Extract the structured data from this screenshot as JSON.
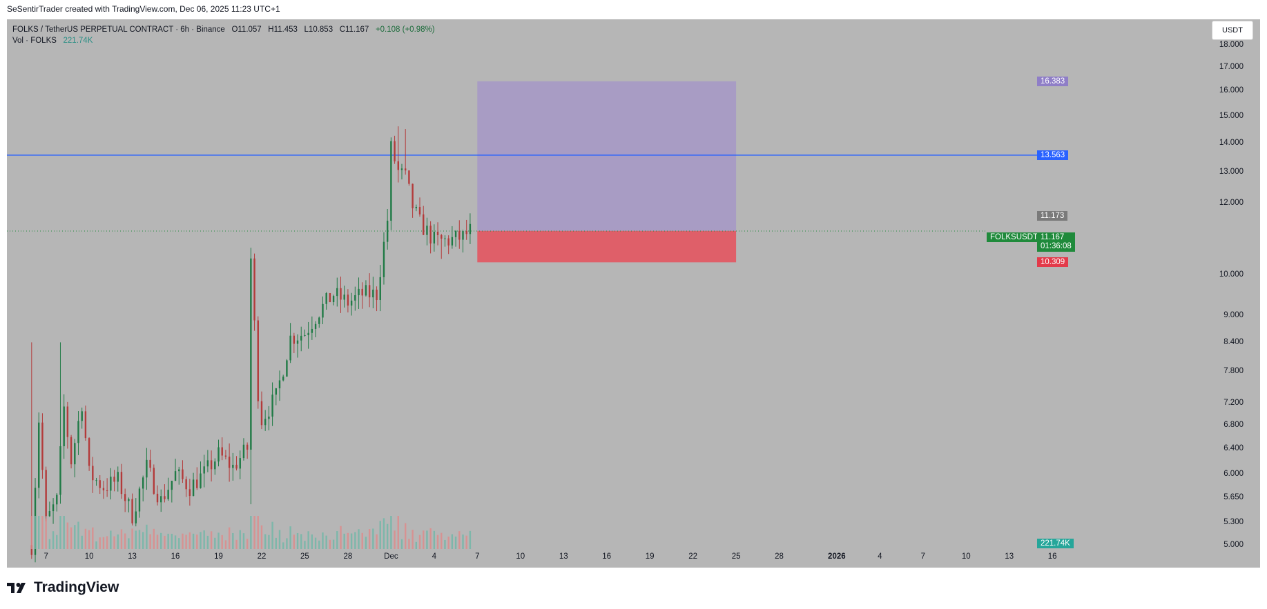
{
  "header": {
    "credit": "SeSentirTrader created with TradingView.com, Dec 06, 2025 11:23 UTC+1"
  },
  "legend": {
    "symbol": "FOLKS / TetherUS PERPETUAL CONTRACT · 6h · Binance",
    "open": "O11.057",
    "high": "H11.453",
    "low": "L10.853",
    "close": "C11.167",
    "change": "+0.108 (+0.98%)",
    "vol_label": "Vol · FOLKS",
    "vol_value": "221.74K"
  },
  "currency_button": "USDT",
  "price_axis": [
    "18.000",
    "17.000",
    "16.000",
    "15.000",
    "14.000",
    "13.000",
    "12.000",
    "10.000",
    "9.000",
    "8.400",
    "7.800",
    "7.200",
    "6.800",
    "6.400",
    "6.000",
    "5.650",
    "5.300",
    "5.000"
  ],
  "time_axis": [
    "7",
    "10",
    "13",
    "16",
    "19",
    "22",
    "25",
    "28",
    "Dec",
    "4",
    "7",
    "10",
    "13",
    "16",
    "19",
    "22",
    "25",
    "28",
    "2026",
    "4",
    "7",
    "10",
    "13",
    "16"
  ],
  "price_tags": {
    "target": "16.383",
    "line": "13.563",
    "last": "11.173",
    "symbol": "FOLKSUSDT.P",
    "current": "11.167",
    "countdown": "01:36:08",
    "stop": "10.309",
    "volume": "221.74K"
  },
  "colors": {
    "up": "#1f7a45",
    "down": "#b33a3a",
    "line": "#2962ff",
    "target_zone": "#a89cc4",
    "stop_zone": "#df5f69",
    "target_tag": "#8f7ec7",
    "stop_tag": "#e33a4a",
    "current_tag": "#1f8a3b",
    "volume_tag": "#26a69a",
    "last_tag": "#7a7a7a"
  },
  "brand": {
    "name": "TradingView",
    "icon": "tradingview-logo-icon"
  },
  "chart_data": {
    "type": "candlestick",
    "symbol": "FOLKSUSDT.P",
    "timeframe": "6h",
    "scale": "log",
    "ylim": [
      4.95,
      19.2
    ],
    "xlim": [
      "2025-11-05",
      "2026-01-17"
    ],
    "horizontal_line": 13.563,
    "position": {
      "entry": 11.173,
      "target": 16.383,
      "stop": 10.309,
      "from": "2025-12-07",
      "to": "2025-12-25"
    },
    "path": [
      [
        "2025-11-06",
        5.0
      ],
      [
        "2025-11-06T12:00",
        6.9
      ],
      [
        "2025-11-07",
        5.3
      ],
      [
        "2025-11-07T18:00",
        5.6
      ],
      [
        "2025-11-08T06:00",
        7.1
      ],
      [
        "2025-11-08T18:00",
        6.2
      ],
      [
        "2025-11-09T12:00",
        7.2
      ],
      [
        "2025-11-10",
        6.0
      ],
      [
        "2025-11-11",
        5.8
      ],
      [
        "2025-11-12",
        5.9
      ],
      [
        "2025-11-13",
        5.4
      ],
      [
        "2025-11-14",
        6.1
      ],
      [
        "2025-11-15",
        5.6
      ],
      [
        "2025-11-16",
        6.0
      ],
      [
        "2025-11-17",
        5.8
      ],
      [
        "2025-11-18",
        6.0
      ],
      [
        "2025-11-19",
        6.3
      ],
      [
        "2025-11-20",
        6.1
      ],
      [
        "2025-11-21",
        6.4
      ],
      [
        "2025-11-21T06:00",
        10.4
      ],
      [
        "2025-11-21T18:00",
        7.4
      ],
      [
        "2025-11-22",
        6.9
      ],
      [
        "2025-11-23",
        7.3
      ],
      [
        "2025-11-24",
        8.5
      ],
      [
        "2025-11-25",
        8.6
      ],
      [
        "2025-11-26",
        9.1
      ],
      [
        "2025-11-27",
        9.5
      ],
      [
        "2025-11-28",
        9.3
      ],
      [
        "2025-11-29",
        9.5
      ],
      [
        "2025-11-30",
        9.5
      ],
      [
        "2025-11-30T18:00",
        11.5
      ],
      [
        "2025-12-01",
        13.8
      ],
      [
        "2025-12-01T12:00",
        13.0
      ],
      [
        "2025-12-02",
        12.8
      ],
      [
        "2025-12-02T12:00",
        11.9
      ],
      [
        "2025-12-03",
        11.4
      ],
      [
        "2025-12-04",
        10.9
      ],
      [
        "2025-12-05",
        10.9
      ],
      [
        "2025-12-06",
        11.0
      ],
      [
        "2025-12-06T12:00",
        11.167
      ]
    ]
  }
}
